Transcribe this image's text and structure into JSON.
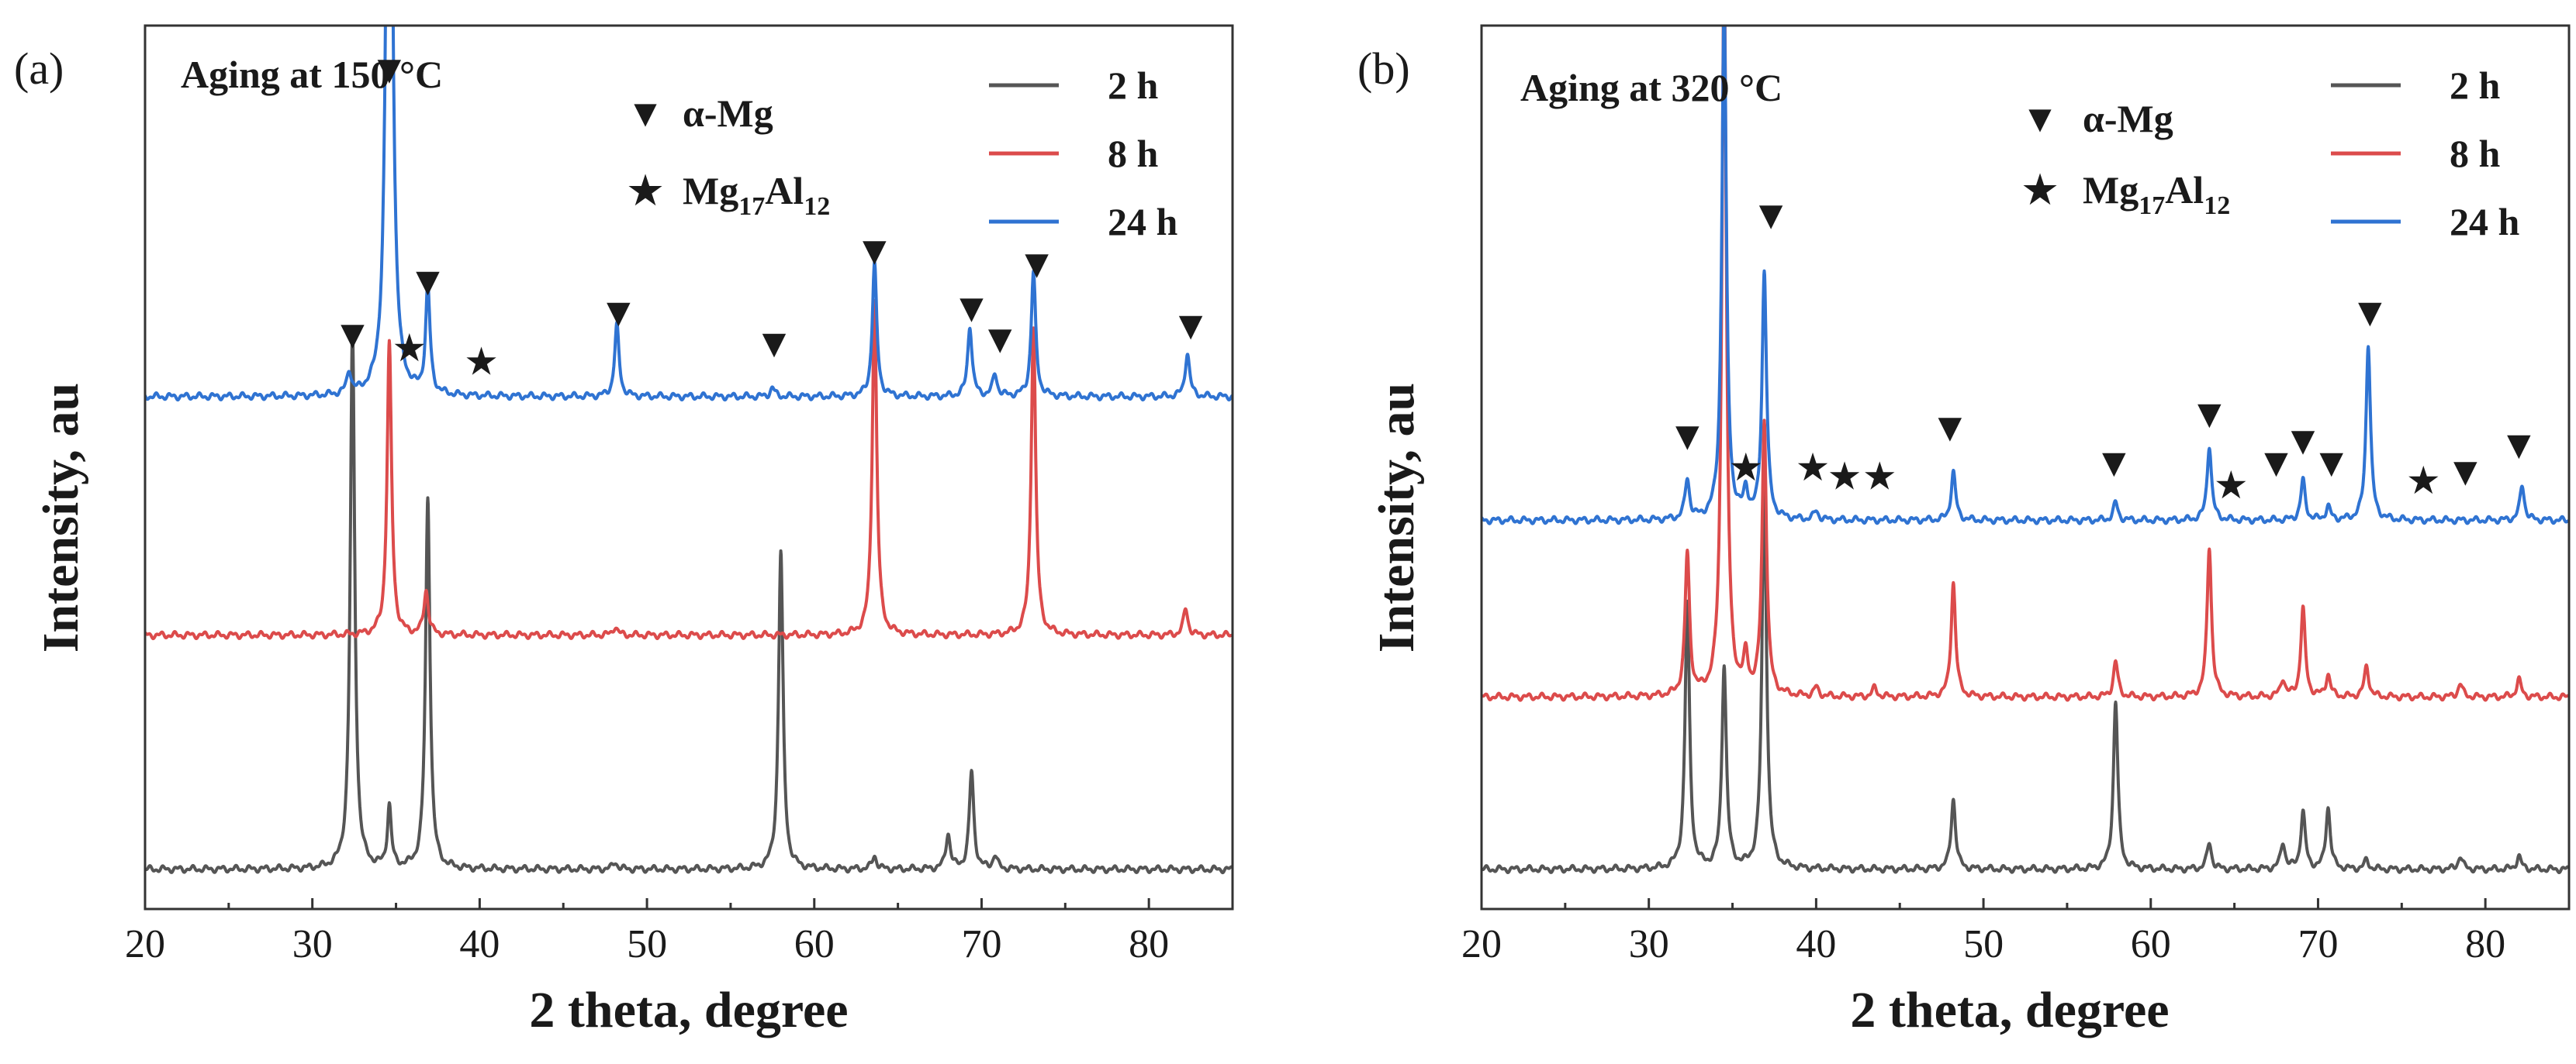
{
  "figure": {
    "colors": {
      "2 h": "#555555",
      "8 h": "#dc4b4b",
      "24 h": "#2f73d2",
      "axis": "#333333",
      "marker": "#000000"
    }
  },
  "chart_data": [
    {
      "type": "line",
      "panel_label": "(a)",
      "title": "Aging at 150 °C",
      "xlabel": "2 theta, degree",
      "ylabel": "Intensity, au",
      "xlim": [
        20,
        85
      ],
      "xticks": [
        20,
        30,
        40,
        50,
        60,
        70,
        80
      ],
      "ylim": [
        0,
        100
      ],
      "legend_position": "top-right",
      "phase_legend": [
        {
          "symbol": "▼",
          "label_main": "α-Mg",
          "label_sub": []
        },
        {
          "symbol": "★",
          "label_main": "Mg",
          "label_sub": [
            "17",
            "Al",
            "12"
          ]
        }
      ],
      "series": [
        {
          "name": "2 h",
          "color": "#555555",
          "baseline": 4.5,
          "peaks": [
            {
              "x": 32.4,
              "h": 61,
              "w": 0.16
            },
            {
              "x": 34.6,
              "h": 7,
              "w": 0.14
            },
            {
              "x": 36.9,
              "h": 42,
              "w": 0.16
            },
            {
              "x": 48.1,
              "h": 0.8,
              "w": 0.16
            },
            {
              "x": 58.0,
              "h": 36,
              "w": 0.16
            },
            {
              "x": 63.6,
              "h": 1.5,
              "w": 0.16
            },
            {
              "x": 68.0,
              "h": 4,
              "w": 0.16
            },
            {
              "x": 69.4,
              "h": 11,
              "w": 0.16
            },
            {
              "x": 70.8,
              "h": 1.5,
              "w": 0.16
            }
          ]
        },
        {
          "name": "8 h",
          "color": "#dc4b4b",
          "baseline": 31,
          "peaks": [
            {
              "x": 34.6,
              "h": 33,
              "w": 0.16
            },
            {
              "x": 36.8,
              "h": 5,
              "w": 0.16
            },
            {
              "x": 48.1,
              "h": 1,
              "w": 0.16
            },
            {
              "x": 63.6,
              "h": 38,
              "w": 0.16
            },
            {
              "x": 73.1,
              "h": 35,
              "w": 0.16
            },
            {
              "x": 82.2,
              "h": 3,
              "w": 0.16
            }
          ]
        },
        {
          "name": "24 h",
          "color": "#2f73d2",
          "baseline": 58,
          "peaks": [
            {
              "x": 32.2,
              "h": 2.5,
              "w": 0.16
            },
            {
              "x": 34.6,
              "h": 112,
              "w": 0.18
            },
            {
              "x": 36.9,
              "h": 12,
              "w": 0.16
            },
            {
              "x": 48.2,
              "h": 8,
              "w": 0.16
            },
            {
              "x": 57.5,
              "h": 1,
              "w": 0.16
            },
            {
              "x": 63.6,
              "h": 15,
              "w": 0.16
            },
            {
              "x": 69.3,
              "h": 8,
              "w": 0.16
            },
            {
              "x": 70.8,
              "h": 2.5,
              "w": 0.16
            },
            {
              "x": 73.1,
              "h": 14,
              "w": 0.16
            },
            {
              "x": 82.3,
              "h": 5,
              "w": 0.16
            }
          ]
        }
      ],
      "annotations": [
        {
          "symbol": "▼",
          "x": 32.4,
          "y": 63.5
        },
        {
          "symbol": "▼",
          "x": 34.6,
          "y": 93.5
        },
        {
          "symbol": "▼",
          "x": 36.9,
          "y": 69.5
        },
        {
          "symbol": "▼",
          "x": 48.3,
          "y": 66
        },
        {
          "symbol": "▼",
          "x": 57.6,
          "y": 62.5
        },
        {
          "symbol": "▼",
          "x": 63.6,
          "y": 73
        },
        {
          "symbol": "▼",
          "x": 69.4,
          "y": 66.5
        },
        {
          "symbol": "▼",
          "x": 71.1,
          "y": 63
        },
        {
          "symbol": "▼",
          "x": 73.3,
          "y": 71.5
        },
        {
          "symbol": "▼",
          "x": 82.5,
          "y": 64.5
        },
        {
          "symbol": "★",
          "x": 35.8,
          "y": 62
        },
        {
          "symbol": "★",
          "x": 40.1,
          "y": 60.5
        }
      ]
    },
    {
      "type": "line",
      "panel_label": "(b)",
      "title": "Aging at 320 °C",
      "xlabel": "2 theta, degree",
      "ylabel": "Intensity, au",
      "xlim": [
        20,
        85
      ],
      "xticks": [
        20,
        30,
        40,
        50,
        60,
        70,
        80
      ],
      "ylim": [
        0,
        100
      ],
      "legend_position": "top-right",
      "phase_legend": [
        {
          "symbol": "▼",
          "label_main": "α-Mg",
          "label_sub": []
        },
        {
          "symbol": "★",
          "label_main": "Mg",
          "label_sub": [
            "17",
            "Al",
            "12"
          ]
        }
      ],
      "series": [
        {
          "name": "2 h",
          "color": "#555555",
          "baseline": 4.5,
          "peaks": [
            {
              "x": 32.3,
              "h": 30,
              "w": 0.16
            },
            {
              "x": 34.5,
              "h": 23,
              "w": 0.16
            },
            {
              "x": 36.9,
              "h": 44,
              "w": 0.16
            },
            {
              "x": 48.2,
              "h": 8,
              "w": 0.16
            },
            {
              "x": 57.9,
              "h": 19,
              "w": 0.16
            },
            {
              "x": 63.5,
              "h": 3,
              "w": 0.16
            },
            {
              "x": 67.9,
              "h": 3,
              "w": 0.16
            },
            {
              "x": 69.1,
              "h": 6.5,
              "w": 0.16
            },
            {
              "x": 70.6,
              "h": 7,
              "w": 0.16
            },
            {
              "x": 72.9,
              "h": 1,
              "w": 0.16
            },
            {
              "x": 78.5,
              "h": 1.5,
              "w": 0.16
            },
            {
              "x": 82.0,
              "h": 1.5,
              "w": 0.16
            }
          ]
        },
        {
          "name": "8 h",
          "color": "#dc4b4b",
          "baseline": 24,
          "peaks": [
            {
              "x": 32.3,
              "h": 16,
              "w": 0.16
            },
            {
              "x": 34.5,
              "h": 84,
              "w": 0.16
            },
            {
              "x": 35.8,
              "h": 4,
              "w": 0.16
            },
            {
              "x": 36.9,
              "h": 31,
              "w": 0.16
            },
            {
              "x": 40.0,
              "h": 1,
              "w": 0.16
            },
            {
              "x": 43.5,
              "h": 1,
              "w": 0.16
            },
            {
              "x": 48.2,
              "h": 13,
              "w": 0.16
            },
            {
              "x": 57.9,
              "h": 4,
              "w": 0.16
            },
            {
              "x": 63.5,
              "h": 17,
              "w": 0.16
            },
            {
              "x": 67.9,
              "h": 2,
              "w": 0.16
            },
            {
              "x": 69.1,
              "h": 10,
              "w": 0.16
            },
            {
              "x": 70.6,
              "h": 2.5,
              "w": 0.16
            },
            {
              "x": 72.9,
              "h": 3.5,
              "w": 0.16
            },
            {
              "x": 78.5,
              "h": 1.5,
              "w": 0.16
            },
            {
              "x": 82.0,
              "h": 2,
              "w": 0.16
            }
          ]
        },
        {
          "name": "24 h",
          "color": "#2f73d2",
          "baseline": 44,
          "peaks": [
            {
              "x": 32.3,
              "h": 4.5,
              "w": 0.16
            },
            {
              "x": 34.5,
              "h": 59,
              "w": 0.16
            },
            {
              "x": 35.8,
              "h": 3,
              "w": 0.16
            },
            {
              "x": 36.9,
              "h": 28,
              "w": 0.16
            },
            {
              "x": 40.0,
              "h": 1,
              "w": 0.16
            },
            {
              "x": 48.2,
              "h": 5.5,
              "w": 0.16
            },
            {
              "x": 57.9,
              "h": 2,
              "w": 0.16
            },
            {
              "x": 63.5,
              "h": 8.5,
              "w": 0.16
            },
            {
              "x": 69.1,
              "h": 4.5,
              "w": 0.16
            },
            {
              "x": 70.6,
              "h": 1.5,
              "w": 0.16
            },
            {
              "x": 73.0,
              "h": 20,
              "w": 0.16
            },
            {
              "x": 82.2,
              "h": 4,
              "w": 0.16
            }
          ]
        }
      ],
      "annotations": [
        {
          "symbol": "▼",
          "x": 32.3,
          "y": 52
        },
        {
          "symbol": "▼",
          "x": 34.5,
          "y": 107
        },
        {
          "symbol": "▼",
          "x": 37.3,
          "y": 77
        },
        {
          "symbol": "▼",
          "x": 48.0,
          "y": 53
        },
        {
          "symbol": "▼",
          "x": 57.8,
          "y": 49
        },
        {
          "symbol": "▼",
          "x": 63.5,
          "y": 54.5
        },
        {
          "symbol": "▼",
          "x": 67.5,
          "y": 49
        },
        {
          "symbol": "▼",
          "x": 69.1,
          "y": 51.5
        },
        {
          "symbol": "▼",
          "x": 70.8,
          "y": 49
        },
        {
          "symbol": "▼",
          "x": 73.1,
          "y": 66
        },
        {
          "symbol": "▼",
          "x": 78.8,
          "y": 48
        },
        {
          "symbol": "▼",
          "x": 82.0,
          "y": 51
        },
        {
          "symbol": "★",
          "x": 35.8,
          "y": 48.5
        },
        {
          "symbol": "★",
          "x": 39.8,
          "y": 48.5
        },
        {
          "symbol": "★",
          "x": 41.7,
          "y": 47.5
        },
        {
          "symbol": "★",
          "x": 43.8,
          "y": 47.5
        },
        {
          "symbol": "★",
          "x": 64.8,
          "y": 46.5
        },
        {
          "symbol": "★",
          "x": 76.3,
          "y": 47
        }
      ]
    }
  ]
}
